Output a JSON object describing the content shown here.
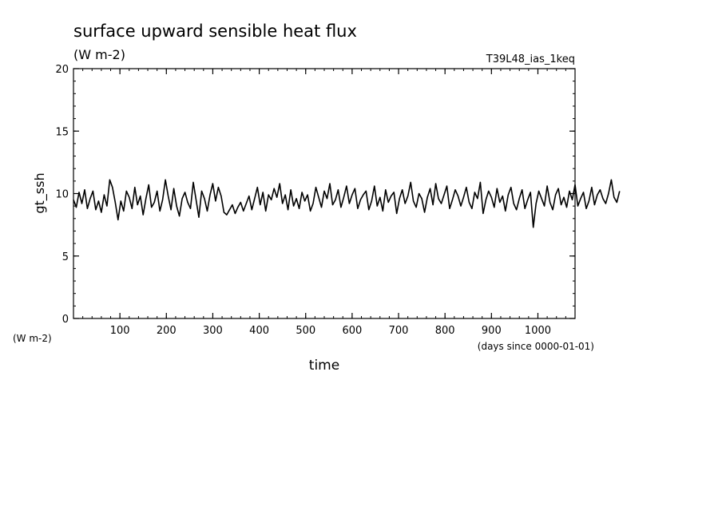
{
  "chart_data": {
    "type": "line",
    "title": "surface upward sensible heat flux",
    "subtitle": "(W m-2)",
    "run_label": "T39L48_ias_1keq",
    "ylabel": "gt_ssh",
    "yunit": "(W m-2)",
    "xlabel": "time",
    "xunit": "(days since 0000-01-01)",
    "xlim": [
      0,
      1080
    ],
    "ylim": [
      0,
      20
    ],
    "x_ticks": [
      100,
      200,
      300,
      400,
      500,
      600,
      700,
      800,
      900,
      1000
    ],
    "y_ticks": [
      0,
      5,
      10,
      15,
      20
    ],
    "grid": false,
    "series": [
      {
        "color": "#000000",
        "x_start": 0,
        "x_step": 6,
        "values": [
          9.5,
          8.9,
          10.1,
          9.2,
          10.3,
          8.8,
          9.6,
          10.2,
          8.7,
          9.4,
          8.5,
          9.9,
          9.0,
          11.1,
          10.5,
          9.3,
          7.9,
          9.4,
          8.6,
          10.2,
          9.7,
          8.8,
          10.5,
          9.1,
          9.8,
          8.3,
          9.6,
          10.7,
          8.9,
          9.3,
          10.2,
          8.6,
          9.5,
          11.1,
          9.8,
          8.7,
          10.4,
          9.0,
          8.2,
          9.6,
          10.1,
          9.3,
          8.8,
          10.9,
          9.5,
          8.1,
          10.2,
          9.6,
          8.6,
          9.9,
          10.8,
          9.4,
          10.5,
          9.8,
          8.5,
          8.3,
          8.7,
          9.1,
          8.4,
          8.9,
          9.3,
          8.6,
          9.2,
          9.8,
          8.7,
          9.6,
          10.5,
          9.1,
          10.1,
          8.6,
          9.9,
          9.5,
          10.4,
          9.7,
          10.8,
          9.2,
          9.9,
          8.7,
          10.3,
          9.0,
          9.6,
          8.8,
          10.1,
          9.4,
          9.9,
          8.6,
          9.2,
          10.5,
          9.7,
          8.9,
          10.2,
          9.6,
          10.8,
          9.1,
          9.5,
          10.3,
          8.9,
          9.7,
          10.6,
          9.2,
          9.9,
          10.4,
          8.8,
          9.5,
          9.9,
          10.2,
          8.7,
          9.4,
          10.6,
          9.0,
          9.7,
          8.6,
          10.3,
          9.3,
          9.8,
          10.1,
          8.4,
          9.6,
          10.3,
          9.2,
          9.8,
          10.9,
          9.4,
          8.9,
          10.0,
          9.6,
          8.5,
          9.7,
          10.4,
          9.1,
          10.8,
          9.6,
          9.2,
          9.9,
          10.6,
          8.8,
          9.5,
          10.3,
          9.8,
          9.0,
          9.7,
          10.5,
          9.3,
          8.8,
          10.1,
          9.6,
          10.9,
          8.4,
          9.5,
          10.2,
          9.7,
          8.9,
          10.4,
          9.3,
          9.8,
          8.6,
          9.9,
          10.5,
          9.2,
          8.7,
          9.6,
          10.3,
          8.8,
          9.5,
          10.1,
          7.3,
          9.2,
          10.2,
          9.6,
          9.0,
          10.6,
          9.3,
          8.7,
          9.9,
          10.4,
          9.1,
          9.7,
          8.9,
          10.2,
          9.5,
          10.7,
          9.0,
          9.6,
          10.1,
          8.8,
          9.4,
          10.5,
          9.1,
          9.9,
          10.3,
          9.6,
          9.2,
          10.0,
          11.1,
          9.7,
          9.3,
          10.2
        ]
      }
    ]
  }
}
